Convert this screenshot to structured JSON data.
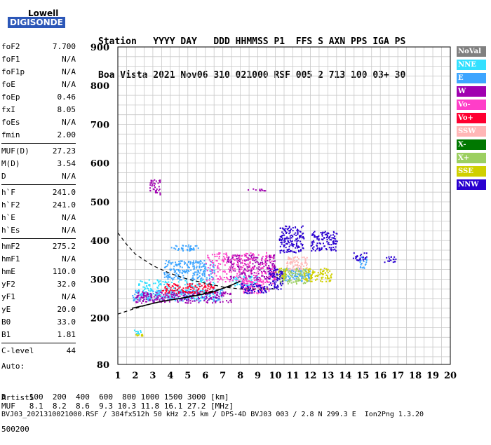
{
  "logo": {
    "line1": "Lowell",
    "line2": "DIGISONDE"
  },
  "header": {
    "row1": "Station   YYYY DAY   DDD HHMMSS P1  FFS S AXN PPS IGA PS",
    "row2": "Boa Vista 2021 Nov06 310 021000 RSF 005 2 713 100 03+ 30"
  },
  "scaled_params": {
    "group1": [
      {
        "label": "foF2",
        "value": "7.700"
      },
      {
        "label": "foF1",
        "value": "N/A"
      },
      {
        "label": "foF1p",
        "value": "N/A"
      },
      {
        "label": "foE",
        "value": "N/A"
      },
      {
        "label": "foEp",
        "value": "0.46"
      },
      {
        "label": "fxI",
        "value": "8.05"
      },
      {
        "label": "foEs",
        "value": "N/A"
      },
      {
        "label": "fmin",
        "value": "2.00"
      }
    ],
    "group2": [
      {
        "label": "MUF(D)",
        "value": "27.23"
      },
      {
        "label": "M(D)",
        "value": "3.54"
      },
      {
        "label": "D",
        "value": "N/A"
      }
    ],
    "group3": [
      {
        "label": "h`F",
        "value": "241.0"
      },
      {
        "label": "h`F2",
        "value": "241.0"
      },
      {
        "label": "h`E",
        "value": "N/A"
      },
      {
        "label": "h`Es",
        "value": "N/A"
      }
    ],
    "group4": [
      {
        "label": "hmF2",
        "value": "275.2"
      },
      {
        "label": "hmF1",
        "value": "N/A"
      },
      {
        "label": "hmE",
        "value": "110.0"
      },
      {
        "label": "yF2",
        "value": "32.0"
      },
      {
        "label": "yF1",
        "value": "N/A"
      },
      {
        "label": "yE",
        "value": "20.0"
      },
      {
        "label": "B0",
        "value": "33.0"
      },
      {
        "label": "B1",
        "value": "1.81"
      }
    ],
    "group5": [
      {
        "label": "C-level",
        "value": "44"
      }
    ]
  },
  "auto": {
    "line1": "Auto:",
    "line2": "Artist5",
    "line3": "500200"
  },
  "footer": {
    "d_row": "D     100  200  400  600  800 1000 1500 3000 [km]",
    "muf_row": "MUF   8.1  8.2  8.6  9.3 10.3 11.8 16.1 27.2 [MHz]",
    "file_row": "BVJ03_2021310021000.RSF / 384fx512h 50 kHz 2.5 km / DPS-4D BVJ03 003 / 2.8 N 299.3 E  Ion2Png 1.3.20"
  },
  "legend": [
    {
      "label": "NoVal",
      "color": "#808080"
    },
    {
      "label": "NNE",
      "color": "#33e0ff"
    },
    {
      "label": "E",
      "color": "#3da5ff"
    },
    {
      "label": "W",
      "color": "#a000b0"
    },
    {
      "label": "Vo-",
      "color": "#ff3ec8"
    },
    {
      "label": "Vo+",
      "color": "#ff0030"
    },
    {
      "label": "SSW",
      "color": "#ffb6b6"
    },
    {
      "label": "X-",
      "color": "#007800"
    },
    {
      "label": "X+",
      "color": "#9ccf60"
    },
    {
      "label": "SSE",
      "color": "#d0d000"
    },
    {
      "label": "NNW",
      "color": "#2a00d0"
    }
  ],
  "chart_data": {
    "type": "scatter",
    "xlabel": "",
    "ylabel": "",
    "xlim": [
      1,
      20
    ],
    "ylim": [
      80,
      900
    ],
    "x_ticks": [
      1,
      2,
      3,
      4,
      5,
      6,
      7,
      8,
      9,
      10,
      11,
      12,
      13,
      14,
      15,
      16,
      17,
      18,
      19,
      20
    ],
    "y_ticks": [
      200,
      300,
      400,
      500,
      600,
      700,
      800,
      900
    ],
    "y_bottom_label": "80",
    "grid": true,
    "series": [
      {
        "name": "E",
        "color": "#3da5ff",
        "clusters": [
          {
            "x": [
              4.0,
              5.6
            ],
            "y": [
              375,
              390
            ]
          },
          {
            "x": [
              3.6,
              6.5
            ],
            "y": [
              300,
              350
            ]
          },
          {
            "x": [
              1.8,
              7.0
            ],
            "y": [
              245,
              275
            ]
          },
          {
            "x": [
              10.4,
              12.0
            ],
            "y": [
              295,
              330
            ]
          },
          {
            "x": [
              14.8,
              15.2
            ],
            "y": [
              330,
              360
            ]
          }
        ]
      },
      {
        "name": "NNE",
        "color": "#33e0ff",
        "clusters": [
          {
            "x": [
              2.0,
              6.5
            ],
            "y": [
              250,
              300
            ]
          },
          {
            "x": [
              7.5,
              9.0
            ],
            "y": [
              285,
              310
            ]
          },
          {
            "x": [
              1.9,
              2.3
            ],
            "y": [
              160,
              170
            ]
          }
        ]
      },
      {
        "name": "W",
        "color": "#a000b0",
        "clusters": [
          {
            "x": [
              2.0,
              7.5
            ],
            "y": [
              240,
              270
            ]
          },
          {
            "x": [
              7.2,
              10.0
            ],
            "y": [
              300,
              365
            ]
          },
          {
            "x": [
              8.4,
              9.4
            ],
            "y": [
              530,
              535
            ]
          },
          {
            "x": [
              2.8,
              3.4
            ],
            "y": [
              520,
              560
            ]
          }
        ]
      },
      {
        "name": "Vo-",
        "color": "#ff3ec8",
        "clusters": [
          {
            "x": [
              6.0,
              10.0
            ],
            "y": [
              290,
              370
            ]
          },
          {
            "x": [
              8.0,
              9.6
            ],
            "y": [
              265,
              300
            ]
          }
        ]
      },
      {
        "name": "Vo+",
        "color": "#ff0030",
        "clusters": [
          {
            "x": [
              3.5,
              6.5
            ],
            "y": [
              265,
              290
            ]
          }
        ]
      },
      {
        "name": "SSW",
        "color": "#ffb6b6",
        "clusters": [
          {
            "x": [
              10.6,
              11.8
            ],
            "y": [
              320,
              360
            ]
          }
        ]
      },
      {
        "name": "X+",
        "color": "#9ccf60",
        "clusters": [
          {
            "x": [
              10.2,
              11.8
            ],
            "y": [
              290,
              330
            ]
          }
        ]
      },
      {
        "name": "SSE",
        "color": "#d0d000",
        "clusters": [
          {
            "x": [
              11.6,
              13.2
            ],
            "y": [
              295,
              330
            ]
          },
          {
            "x": [
              10.0,
              10.6
            ],
            "y": [
              300,
              330
            ]
          },
          {
            "x": [
              2.0,
              2.4
            ],
            "y": [
              155,
              160
            ]
          }
        ]
      },
      {
        "name": "NNW",
        "color": "#2a00d0",
        "clusters": [
          {
            "x": [
              10.2,
              11.6
            ],
            "y": [
              370,
              440
            ]
          },
          {
            "x": [
              12.0,
              13.5
            ],
            "y": [
              375,
              425
            ]
          },
          {
            "x": [
              14.4,
              15.2
            ],
            "y": [
              350,
              370
            ]
          },
          {
            "x": [
              16.2,
              16.9
            ],
            "y": [
              345,
              360
            ]
          },
          {
            "x": [
              9.6,
              10.4
            ],
            "y": [
              275,
              330
            ]
          },
          {
            "x": [
              8.0,
              9.5
            ],
            "y": [
              265,
              290
            ]
          }
        ]
      }
    ],
    "curves": {
      "lower_trace": {
        "x": [
          1.8,
          2.5,
          3.5,
          4.5,
          5.5,
          6.5,
          7.5,
          8.0
        ],
        "y": [
          225,
          232,
          243,
          250,
          258,
          268,
          285,
          295
        ]
      },
      "dashed_profile": {
        "x": [
          1.0,
          1.5,
          2.0,
          3.0,
          4.0,
          5.0,
          6.0,
          7.0,
          8.0,
          10.0
        ],
        "y": [
          420,
          390,
          365,
          335,
          315,
          300,
          290,
          280,
          275,
          275
        ]
      },
      "dashed_lower": {
        "x": [
          1.0,
          1.8,
          3.0,
          4.5,
          6.0,
          7.5
        ],
        "y": [
          210,
          222,
          238,
          250,
          265,
          282
        ]
      }
    }
  }
}
